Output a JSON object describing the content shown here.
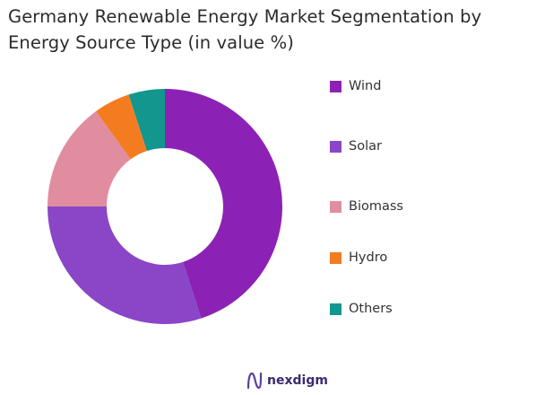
{
  "chart_data": {
    "type": "pie",
    "variant": "donut",
    "title_lines": [
      "Germany Renewable Energy Market Segmentation by",
      "Energy Source Type (in value %)"
    ],
    "categories": [
      "Wind",
      "Solar",
      "Biomass",
      "Hydro",
      "Others"
    ],
    "values": [
      45,
      30,
      15,
      5,
      5
    ],
    "colors": [
      "#8b22b5",
      "#8a46c6",
      "#e08da0",
      "#f47c20",
      "#12968e"
    ],
    "legend_position": "right",
    "start_angle_deg": 0,
    "direction": "clockwise"
  },
  "brand": {
    "logo_icon": "nexdigm-n-icon",
    "name": "nexdigm"
  }
}
